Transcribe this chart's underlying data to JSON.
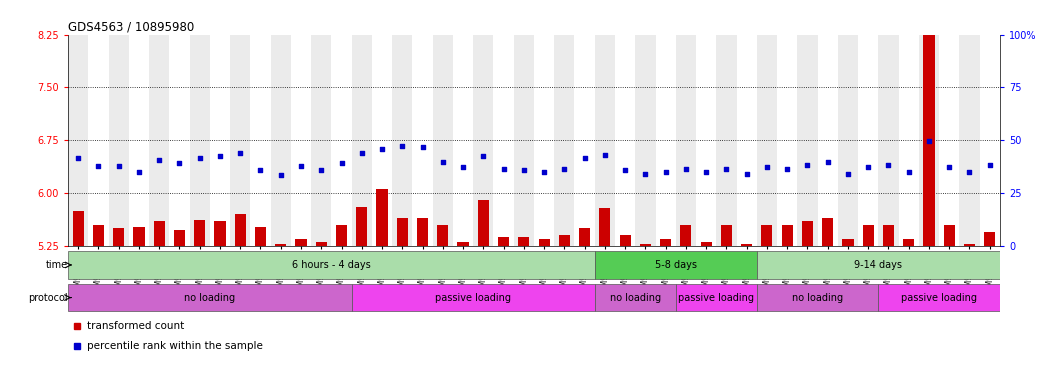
{
  "title": "GDS4563 / 10895980",
  "categories": [
    "GSM930471",
    "GSM930472",
    "GSM930473",
    "GSM930474",
    "GSM930475",
    "GSM930476",
    "GSM930477",
    "GSM930478",
    "GSM930479",
    "GSM930480",
    "GSM930481",
    "GSM930482",
    "GSM930483",
    "GSM930494",
    "GSM930495",
    "GSM930496",
    "GSM930497",
    "GSM930498",
    "GSM930499",
    "GSM930500",
    "GSM930501",
    "GSM930502",
    "GSM930503",
    "GSM930504",
    "GSM930505",
    "GSM930506",
    "GSM930484",
    "GSM930485",
    "GSM930486",
    "GSM930487",
    "GSM930507",
    "GSM930508",
    "GSM930509",
    "GSM930510",
    "GSM930488",
    "GSM930489",
    "GSM930490",
    "GSM930491",
    "GSM930492",
    "GSM930493",
    "GSM930511",
    "GSM930512",
    "GSM930513",
    "GSM930514",
    "GSM930515",
    "GSM930516"
  ],
  "bar_values": [
    5.75,
    5.55,
    5.5,
    5.52,
    5.6,
    5.48,
    5.62,
    5.6,
    5.7,
    5.52,
    5.27,
    5.35,
    5.3,
    5.55,
    5.8,
    6.05,
    5.65,
    5.65,
    5.55,
    5.3,
    5.9,
    5.38,
    5.38,
    5.35,
    5.4,
    5.5,
    5.78,
    5.4,
    5.28,
    5.35,
    5.55,
    5.3,
    5.55,
    5.28,
    5.55,
    5.55,
    5.6,
    5.65,
    5.35,
    5.55,
    5.55,
    5.35,
    8.35,
    5.55,
    5.28,
    5.45
  ],
  "dot_values": [
    6.5,
    6.38,
    6.38,
    6.3,
    6.47,
    6.42,
    6.5,
    6.53,
    6.57,
    6.32,
    6.25,
    6.38,
    6.32,
    6.42,
    6.57,
    6.62,
    6.67,
    6.65,
    6.44,
    6.37,
    6.52,
    6.34,
    6.32,
    6.3,
    6.34,
    6.5,
    6.54,
    6.32,
    6.27,
    6.3,
    6.34,
    6.3,
    6.34,
    6.27,
    6.37,
    6.34,
    6.4,
    6.44,
    6.27,
    6.37,
    6.4,
    6.3,
    6.74,
    6.37,
    6.3,
    6.4
  ],
  "bar_color": "#cc0000",
  "dot_color": "#0000cc",
  "ylim_left": [
    5.25,
    8.25
  ],
  "ylim_right": [
    0,
    100
  ],
  "yticks_left": [
    5.25,
    6.0,
    6.75,
    7.5,
    8.25
  ],
  "yticks_right": [
    0,
    25,
    50,
    75,
    100
  ],
  "hlines": [
    6.0,
    6.75,
    7.5
  ],
  "time_groups": [
    {
      "label": "6 hours - 4 days",
      "start": 0,
      "end": 26,
      "color": "#aaddaa"
    },
    {
      "label": "5-8 days",
      "start": 26,
      "end": 34,
      "color": "#55cc55"
    },
    {
      "label": "9-14 days",
      "start": 34,
      "end": 46,
      "color": "#aaddaa"
    }
  ],
  "protocol_groups": [
    {
      "label": "no loading",
      "start": 0,
      "end": 14,
      "color": "#cc66cc"
    },
    {
      "label": "passive loading",
      "start": 14,
      "end": 26,
      "color": "#ee44ee"
    },
    {
      "label": "no loading",
      "start": 26,
      "end": 30,
      "color": "#cc66cc"
    },
    {
      "label": "passive loading",
      "start": 30,
      "end": 34,
      "color": "#ee44ee"
    },
    {
      "label": "no loading",
      "start": 34,
      "end": 40,
      "color": "#cc66cc"
    },
    {
      "label": "passive loading",
      "start": 40,
      "end": 46,
      "color": "#ee44ee"
    }
  ],
  "legend_bar_label": "transformed count",
  "legend_dot_label": "percentile rank within the sample",
  "col_even": "#ebebeb",
  "col_odd": "#ffffff",
  "tick_label_fontsize": 5.5,
  "bar_width": 0.55
}
